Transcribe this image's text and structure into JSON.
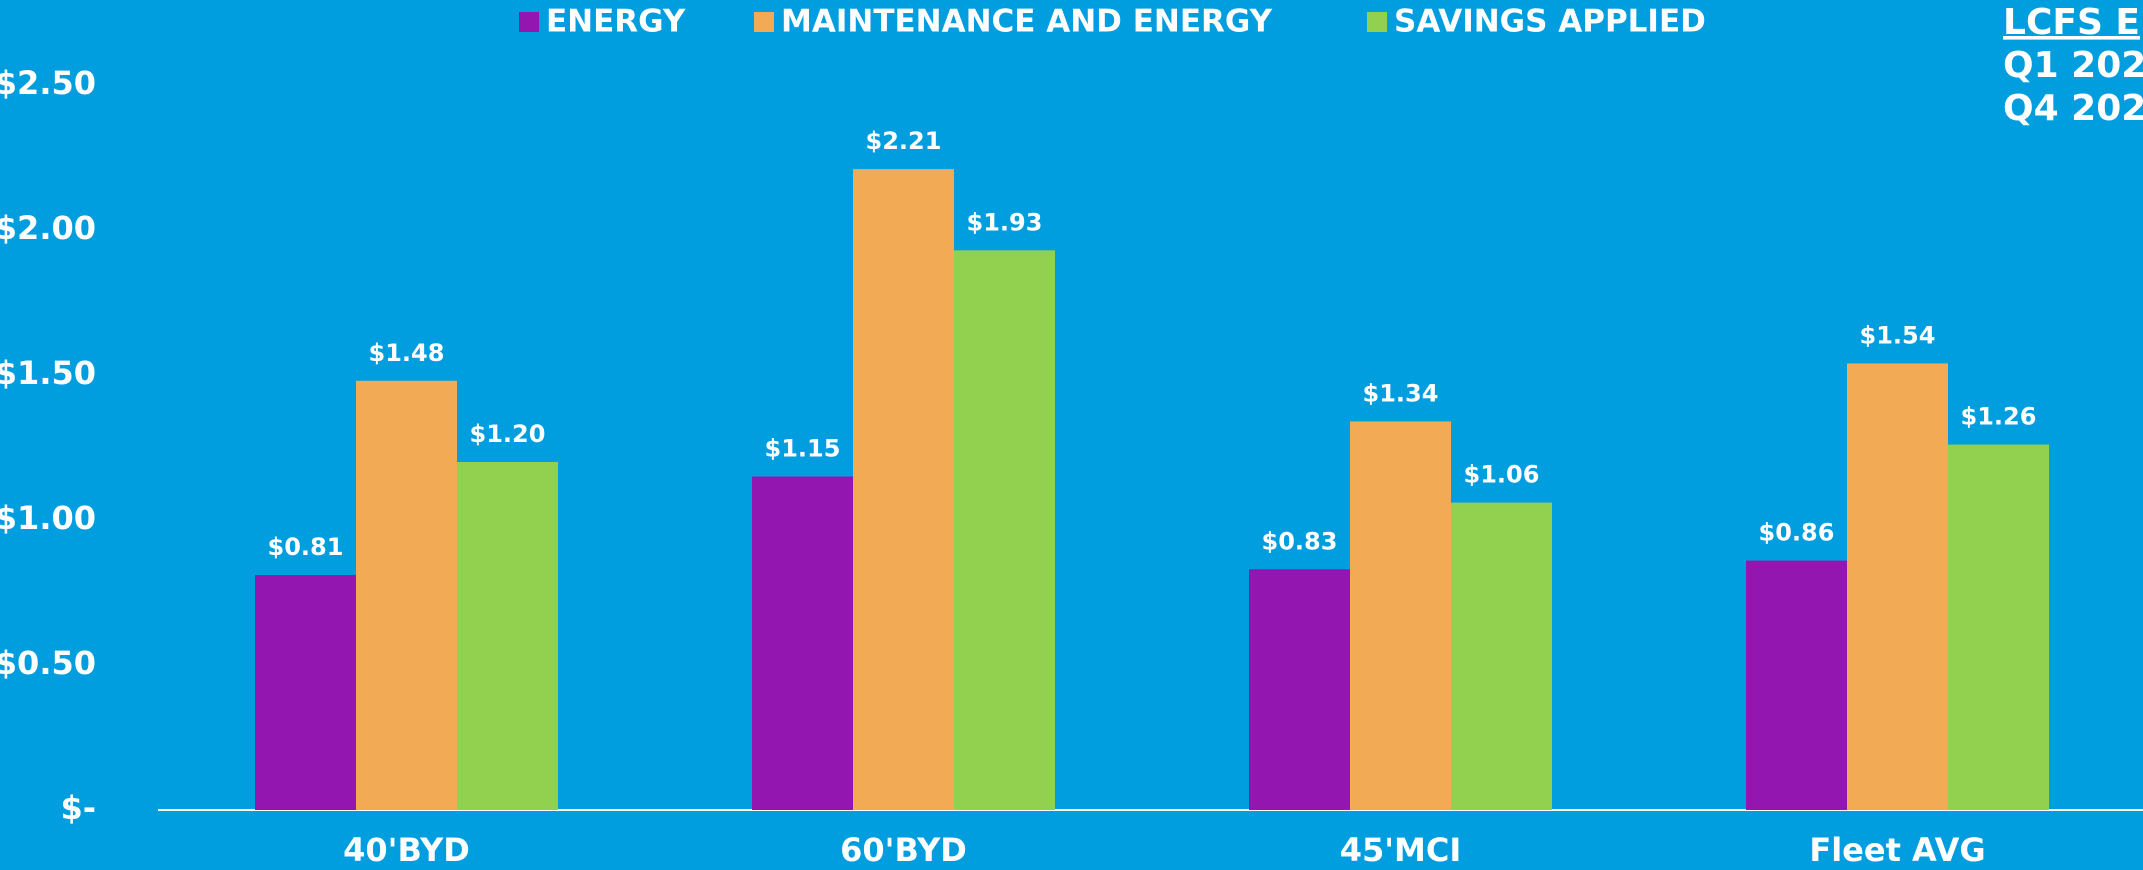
{
  "chart_data": {
    "type": "bar",
    "side_title": [
      "LCFS E",
      "Q1 202",
      "Q4 202"
    ],
    "categories": [
      "40'BYD",
      "60'BYD",
      "45'MCI",
      "Fleet AVG"
    ],
    "series": [
      {
        "name": "ENERGY",
        "color": "#9416b0",
        "values": [
          0.81,
          1.15,
          0.83,
          0.86
        ],
        "value_labels": [
          "$0.81",
          "$1.15",
          "$0.83",
          "$0.86"
        ]
      },
      {
        "name": "MAINTENANCE AND ENERGY",
        "color": "#f2aa55",
        "values": [
          1.48,
          2.21,
          1.34,
          1.54
        ],
        "value_labels": [
          "$1.48",
          "$2.21",
          "$1.34",
          "$1.54"
        ]
      },
      {
        "name": "SAVINGS APPLIED",
        "color": "#92d050",
        "values": [
          1.2,
          1.93,
          1.06,
          1.26
        ],
        "value_labels": [
          "$1.20",
          "$1.93",
          "$1.06",
          "$1.26"
        ]
      }
    ],
    "ylim": [
      0,
      2.5
    ],
    "yticks": [
      {
        "value": 0,
        "label": "$-"
      },
      {
        "value": 0.5,
        "label": "$0.50"
      },
      {
        "value": 1,
        "label": "$1.00"
      },
      {
        "value": 1.5,
        "label": "$1.50"
      },
      {
        "value": 2,
        "label": "$2.00"
      },
      {
        "value": 2.5,
        "label": "$2.50"
      }
    ],
    "grid": false,
    "legend": "top"
  }
}
